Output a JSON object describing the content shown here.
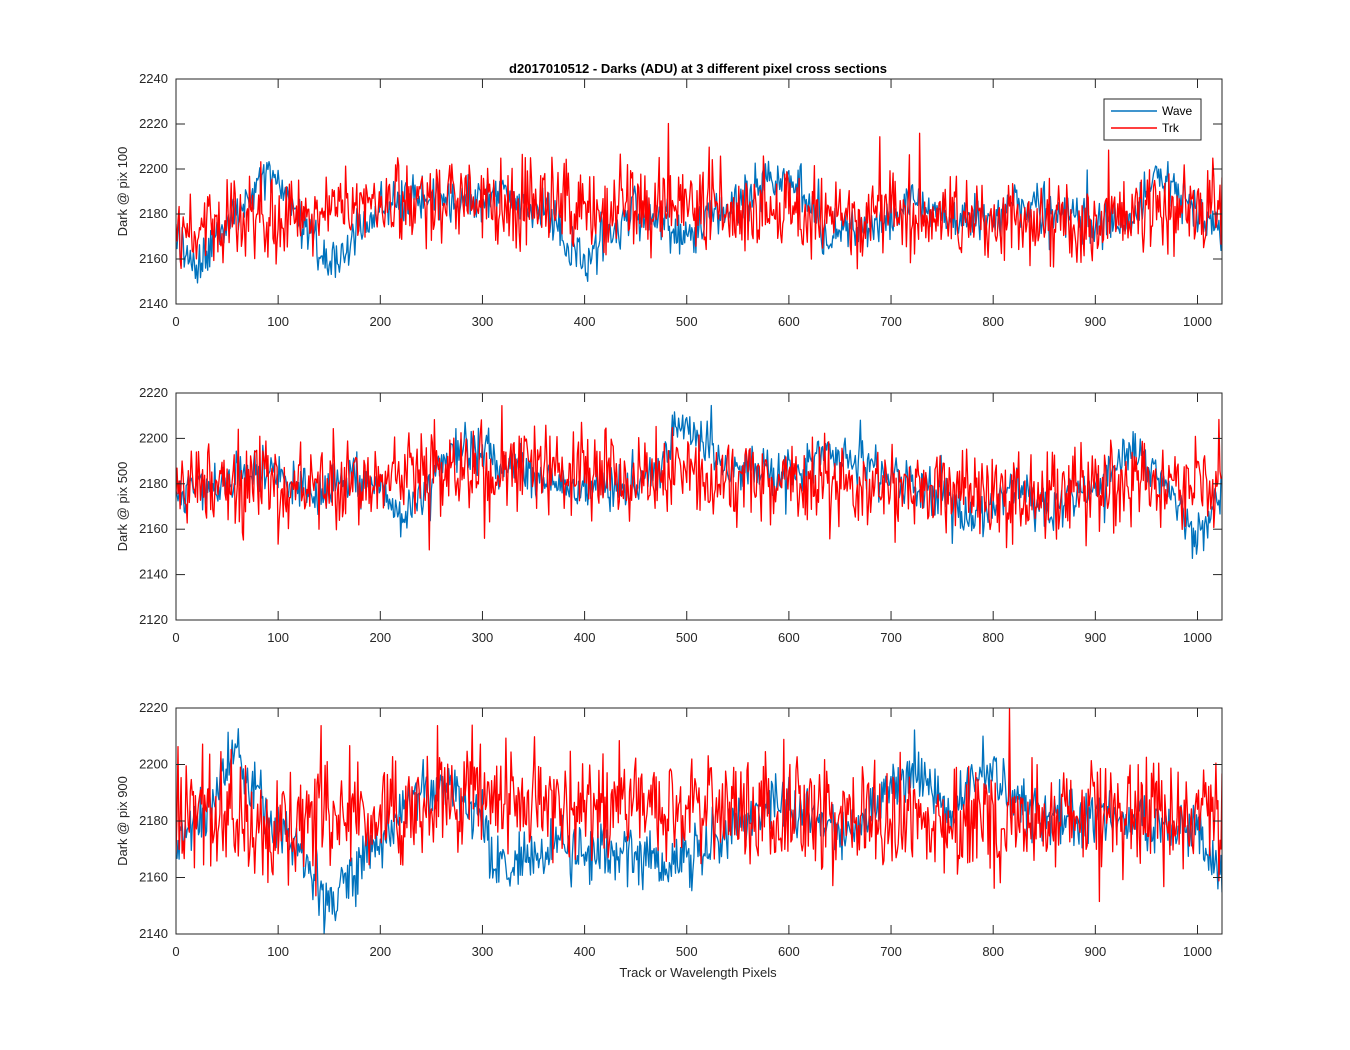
{
  "figure": {
    "title": "d2017010512 - Darks (ADU) at 3 different pixel cross sections",
    "xlabel": "Track or Wavelength Pixels"
  },
  "colors": {
    "wave": "#0072BD",
    "trk": "#FF0000",
    "axis": "#262626"
  },
  "chart_data": [
    {
      "type": "line",
      "title": "d2017010512 - Darks (ADU) at 3 different pixel cross sections",
      "xlabel": "",
      "ylabel": "Dark @ pix 100",
      "xlim": [
        0,
        1024
      ],
      "ylim": [
        2140,
        2240
      ],
      "xticks": [
        0,
        100,
        200,
        300,
        400,
        500,
        600,
        700,
        800,
        900,
        1000
      ],
      "yticks": [
        2140,
        2160,
        2180,
        2200,
        2220,
        2240
      ],
      "legend": {
        "position": "top-right",
        "entries": [
          "Wave",
          "Trk"
        ]
      },
      "series": [
        {
          "name": "Wave",
          "color": "#0072BD",
          "noise": 5,
          "x": [
            0,
            20,
            40,
            60,
            80,
            90,
            100,
            120,
            140,
            150,
            160,
            180,
            200,
            240,
            280,
            320,
            360,
            390,
            400,
            420,
            450,
            480,
            500,
            520,
            540,
            560,
            580,
            600,
            620,
            640,
            660,
            700,
            720,
            750,
            780,
            820,
            860,
            900,
            940,
            960,
            980,
            1000,
            1024
          ],
          "y": [
            2165,
            2158,
            2170,
            2180,
            2194,
            2200,
            2195,
            2178,
            2163,
            2155,
            2160,
            2175,
            2183,
            2187,
            2184,
            2189,
            2182,
            2162,
            2158,
            2170,
            2180,
            2175,
            2170,
            2178,
            2183,
            2188,
            2196,
            2197,
            2185,
            2168,
            2172,
            2178,
            2186,
            2180,
            2175,
            2185,
            2180,
            2178,
            2176,
            2198,
            2190,
            2180,
            2168
          ]
        },
        {
          "name": "Trk",
          "color": "#FF0000",
          "noise": 9,
          "x": [
            0,
            60,
            120,
            180,
            240,
            270,
            300,
            360,
            420,
            480,
            540,
            600,
            660,
            720,
            780,
            840,
            900,
            960,
            1024
          ],
          "y": [
            2172,
            2178,
            2180,
            2182,
            2186,
            2188,
            2185,
            2185,
            2183,
            2184,
            2182,
            2180,
            2180,
            2178,
            2176,
            2177,
            2177,
            2180,
            2180
          ]
        }
      ]
    },
    {
      "type": "line",
      "title": "",
      "xlabel": "",
      "ylabel": "Dark @ pix 500",
      "xlim": [
        0,
        1024
      ],
      "ylim": [
        2120,
        2220
      ],
      "xticks": [
        0,
        100,
        200,
        300,
        400,
        500,
        600,
        700,
        800,
        900,
        1000
      ],
      "yticks": [
        2120,
        2140,
        2160,
        2180,
        2200,
        2220
      ],
      "series": [
        {
          "name": "Wave",
          "color": "#0072BD",
          "noise": 5,
          "x": [
            0,
            40,
            80,
            100,
            140,
            160,
            200,
            220,
            260,
            300,
            320,
            360,
            400,
            440,
            470,
            490,
            510,
            540,
            600,
            640,
            680,
            720,
            760,
            780,
            820,
            860,
            900,
            940,
            980,
            1000,
            1024
          ],
          "y": [
            2178,
            2180,
            2188,
            2185,
            2172,
            2182,
            2180,
            2163,
            2190,
            2197,
            2190,
            2182,
            2175,
            2180,
            2185,
            2205,
            2203,
            2185,
            2184,
            2195,
            2186,
            2180,
            2175,
            2164,
            2178,
            2168,
            2180,
            2195,
            2175,
            2155,
            2180
          ]
        },
        {
          "name": "Trk",
          "color": "#FF0000",
          "noise": 9,
          "x": [
            0,
            60,
            120,
            180,
            240,
            300,
            360,
            420,
            480,
            540,
            600,
            660,
            720,
            780,
            840,
            900,
            960,
            1024
          ],
          "y": [
            2178,
            2178,
            2180,
            2182,
            2185,
            2186,
            2187,
            2186,
            2185,
            2183,
            2181,
            2180,
            2178,
            2176,
            2174,
            2178,
            2180,
            2182
          ]
        }
      ]
    },
    {
      "type": "line",
      "title": "",
      "xlabel": "Track or Wavelength Pixels",
      "ylabel": "Dark @ pix 900",
      "xlim": [
        0,
        1024
      ],
      "ylim": [
        2140,
        2220
      ],
      "xticks": [
        0,
        100,
        200,
        300,
        400,
        500,
        600,
        700,
        800,
        900,
        1000
      ],
      "yticks": [
        2140,
        2160,
        2180,
        2200,
        2220
      ],
      "series": [
        {
          "name": "Wave",
          "color": "#0072BD",
          "noise": 5,
          "x": [
            0,
            30,
            50,
            60,
            80,
            100,
            120,
            150,
            170,
            200,
            240,
            270,
            300,
            310,
            330,
            380,
            450,
            480,
            500,
            540,
            580,
            620,
            660,
            700,
            730,
            760,
            790,
            820,
            860,
            900,
            950,
            1000,
            1024
          ],
          "y": [
            2172,
            2182,
            2200,
            2205,
            2188,
            2176,
            2170,
            2150,
            2160,
            2175,
            2192,
            2190,
            2180,
            2162,
            2165,
            2170,
            2168,
            2162,
            2170,
            2175,
            2188,
            2180,
            2175,
            2192,
            2198,
            2180,
            2200,
            2188,
            2182,
            2180,
            2180,
            2175,
            2160
          ]
        },
        {
          "name": "Trk",
          "color": "#FF0000",
          "noise": 9,
          "x": [
            0,
            60,
            120,
            180,
            240,
            300,
            360,
            420,
            480,
            540,
            600,
            660,
            720,
            780,
            840,
            900,
            960,
            1024
          ],
          "y": [
            2178,
            2178,
            2176,
            2180,
            2186,
            2188,
            2185,
            2187,
            2186,
            2184,
            2182,
            2183,
            2180,
            2178,
            2180,
            2182,
            2183,
            2182
          ]
        }
      ]
    }
  ]
}
